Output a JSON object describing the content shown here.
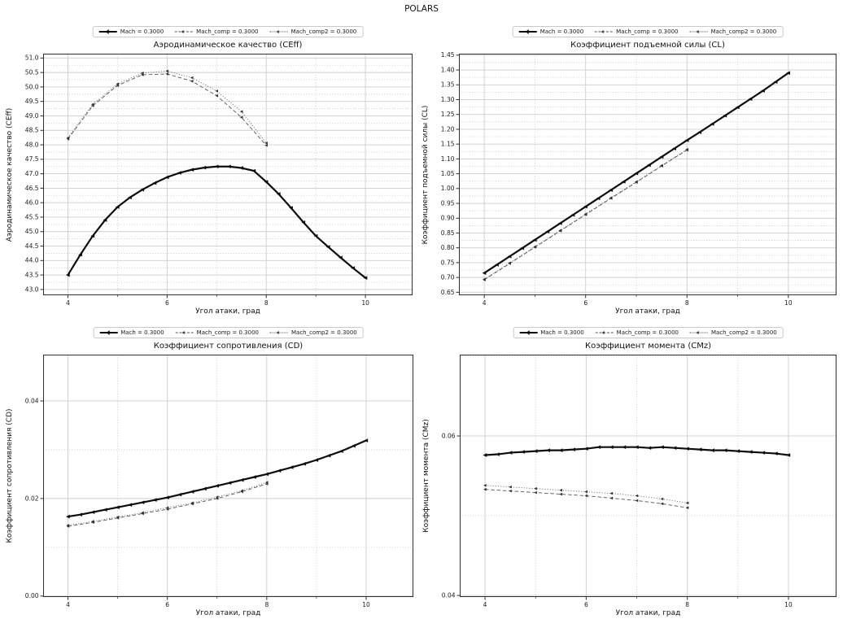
{
  "figure": {
    "suptitle": "POLARS",
    "background": "#ffffff"
  },
  "style": {
    "line_main": "#0d0d0d",
    "line_comp": "#555555",
    "marker_comp": "#333333",
    "grid_major": "#cdcdcd",
    "grid_minor": "#c4c4c4",
    "spine": "#2e2e2e",
    "tick_text": "#1a1a1a"
  },
  "legend": {
    "items": [
      {
        "label": "Mach = 0.3000",
        "style": "solid",
        "marker": "triangle-left"
      },
      {
        "label": "Mach_comp = 0.3000",
        "style": "dashed",
        "marker": "triangle-left"
      },
      {
        "label": "Mach_comp2 = 0.3000",
        "style": "dotted",
        "marker": "triangle-left"
      }
    ]
  },
  "chart_data": [
    {
      "type": "line",
      "title": "Аэродинамическое качество (CEff)",
      "xlabel": "Угол атаки, град",
      "ylabel": "Аэродинамическое качество (CEff)",
      "xlim": [
        3.5,
        10.95
      ],
      "ylim": [
        42.8,
        51.15
      ],
      "grid": true,
      "legend_position": "top-center",
      "xticks": {
        "values": [
          4,
          6,
          8,
          10
        ],
        "labels": [
          "4",
          "6",
          "8",
          "10"
        ],
        "minor": [
          5,
          7,
          9
        ]
      },
      "yticks": {
        "values": [
          43.0,
          43.5,
          44.0,
          44.5,
          45.0,
          45.5,
          46.0,
          46.5,
          47.0,
          47.5,
          48.0,
          48.5,
          49.0,
          49.5,
          50.0,
          50.5,
          51.0
        ],
        "labels": [
          "43.0",
          "43.5",
          "44.0",
          "44.5",
          "45.0",
          "45.5",
          "46.0",
          "46.5",
          "47.0",
          "47.5",
          "48.0",
          "48.5",
          "49.0",
          "49.5",
          "50.0",
          "50.5",
          "51.0"
        ]
      },
      "series": [
        {
          "name": "Mach = 0.3000",
          "style": "solid",
          "x": [
            4,
            4.25,
            4.5,
            4.75,
            5,
            5.25,
            5.5,
            5.75,
            6,
            6.25,
            6.5,
            6.75,
            7,
            7.25,
            7.5,
            7.75,
            8,
            8.25,
            8.5,
            8.75,
            9,
            9.25,
            9.5,
            9.75,
            10
          ],
          "y": [
            43.5,
            44.2,
            44.85,
            45.4,
            45.85,
            46.18,
            46.45,
            46.68,
            46.88,
            47.03,
            47.14,
            47.21,
            47.25,
            47.25,
            47.2,
            47.1,
            46.72,
            46.3,
            45.82,
            45.32,
            44.85,
            44.47,
            44.1,
            43.74,
            43.4
          ]
        },
        {
          "name": "Mach_comp = 0.3000",
          "style": "dashed",
          "x": [
            4,
            4.5,
            5,
            5.5,
            6,
            6.5,
            7,
            7.5,
            8
          ],
          "y": [
            48.2,
            49.35,
            50.05,
            50.42,
            50.45,
            50.2,
            49.7,
            48.95,
            47.98
          ]
        },
        {
          "name": "Mach_comp2 = 0.3000",
          "style": "dotted",
          "x": [
            4,
            4.5,
            5,
            5.5,
            6,
            6.5,
            7,
            7.5,
            8
          ],
          "y": [
            48.24,
            49.4,
            50.1,
            50.48,
            50.55,
            50.32,
            49.86,
            49.15,
            48.06
          ]
        }
      ]
    },
    {
      "type": "line",
      "title": "Коэффициент подъемной силы (CL)",
      "xlabel": "Угол атаки, град",
      "ylabel": "Коэффициент подъемной силы (CL)",
      "xlim": [
        3.5,
        10.95
      ],
      "ylim": [
        0.64,
        1.455
      ],
      "grid": true,
      "legend_position": "top-center",
      "xticks": {
        "values": [
          4,
          6,
          8,
          10
        ],
        "labels": [
          "4",
          "6",
          "8",
          "10"
        ],
        "minor": [
          5,
          7,
          9
        ]
      },
      "yticks": {
        "values": [
          0.65,
          0.7,
          0.75,
          0.8,
          0.85,
          0.9,
          0.95,
          1.0,
          1.05,
          1.1,
          1.15,
          1.2,
          1.25,
          1.3,
          1.35,
          1.4,
          1.45
        ],
        "labels": [
          "0.65",
          "0.70",
          "0.75",
          "0.80",
          "0.85",
          "0.90",
          "0.95",
          "1.00",
          "1.05",
          "1.10",
          "1.15",
          "1.20",
          "1.25",
          "1.30",
          "1.35",
          "1.40",
          "1.45"
        ]
      },
      "series": [
        {
          "name": "Mach = 0.3000",
          "style": "solid",
          "x": [
            4,
            4.25,
            4.5,
            4.75,
            5,
            5.25,
            5.5,
            5.75,
            6,
            6.25,
            6.5,
            6.75,
            7,
            7.25,
            7.5,
            7.75,
            8,
            8.25,
            8.5,
            8.75,
            9,
            9.25,
            9.5,
            9.75,
            10
          ],
          "y": [
            0.715,
            0.743,
            0.771,
            0.799,
            0.827,
            0.855,
            0.883,
            0.911,
            0.939,
            0.967,
            0.995,
            1.023,
            1.051,
            1.079,
            1.107,
            1.135,
            1.163,
            1.19,
            1.218,
            1.246,
            1.274,
            1.302,
            1.33,
            1.36,
            1.39
          ]
        },
        {
          "name": "Mach_comp = 0.3000",
          "style": "dashed",
          "x": [
            4,
            4.5,
            5,
            5.5,
            6,
            6.5,
            7,
            7.5,
            8
          ],
          "y": [
            0.692,
            0.747,
            0.802,
            0.857,
            0.912,
            0.967,
            1.021,
            1.076,
            1.13
          ]
        },
        {
          "name": "Mach_comp2 = 0.3000",
          "style": "dotted",
          "x": [
            4,
            4.5,
            5,
            5.5,
            6,
            6.5,
            7,
            7.5,
            8
          ],
          "y": [
            0.694,
            0.749,
            0.804,
            0.859,
            0.914,
            0.969,
            1.023,
            1.078,
            1.132
          ]
        }
      ]
    },
    {
      "type": "line",
      "title": "Коэффициент сопротивления (CD)",
      "xlabel": "Угол атаки, град",
      "ylabel": "Коэффициент сопротивления (CD)",
      "xlim": [
        3.5,
        10.95
      ],
      "ylim": [
        -0.0002,
        0.0495
      ],
      "grid": true,
      "legend_position": "top-center",
      "xticks": {
        "values": [
          4,
          6,
          8,
          10
        ],
        "labels": [
          "4",
          "6",
          "8",
          "10"
        ],
        "minor": [
          5,
          7,
          9
        ]
      },
      "yticks": {
        "values": [
          0.0,
          0.02,
          0.04
        ],
        "labels": [
          "0.00",
          "0.02",
          "0.04"
        ]
      },
      "series": [
        {
          "name": "Mach = 0.3000",
          "style": "solid",
          "x": [
            4,
            4.25,
            4.5,
            4.75,
            5,
            5.25,
            5.5,
            5.75,
            6,
            6.25,
            6.5,
            6.75,
            7,
            7.25,
            7.5,
            7.75,
            8,
            8.25,
            8.5,
            8.75,
            9,
            9.25,
            9.5,
            9.75,
            10
          ],
          "y": [
            0.0163,
            0.0167,
            0.0172,
            0.0177,
            0.0182,
            0.0187,
            0.0192,
            0.0197,
            0.0202,
            0.0208,
            0.0214,
            0.022,
            0.0226,
            0.0232,
            0.0238,
            0.0244,
            0.025,
            0.0257,
            0.0264,
            0.0271,
            0.0279,
            0.0288,
            0.0297,
            0.0308,
            0.0319
          ]
        },
        {
          "name": "Mach_comp = 0.3000",
          "style": "dashed",
          "x": [
            4,
            4.5,
            5,
            5.5,
            6,
            6.5,
            7,
            7.5,
            8
          ],
          "y": [
            0.0143,
            0.0151,
            0.016,
            0.0169,
            0.0178,
            0.0189,
            0.02,
            0.0214,
            0.023
          ]
        },
        {
          "name": "Mach_comp2 = 0.3000",
          "style": "dotted",
          "x": [
            4,
            4.5,
            5,
            5.5,
            6,
            6.5,
            7,
            7.5,
            8
          ],
          "y": [
            0.0145,
            0.0153,
            0.0162,
            0.0171,
            0.0181,
            0.0191,
            0.0203,
            0.0216,
            0.0233
          ]
        }
      ]
    },
    {
      "type": "line",
      "title": "Коэффициент момента (CMz)",
      "xlabel": "Угол атаки, град",
      "ylabel": "Коэффициент момента (CMz)",
      "xlim": [
        3.5,
        10.95
      ],
      "ylim": [
        0.0398,
        0.0702
      ],
      "grid": true,
      "legend_position": "top-center",
      "xticks": {
        "values": [
          4,
          6,
          8,
          10
        ],
        "labels": [
          "4",
          "6",
          "8",
          "10"
        ],
        "minor": [
          5,
          7,
          9
        ]
      },
      "yticks": {
        "values": [
          0.04,
          0.06
        ],
        "labels": [
          "0.04",
          "0.06"
        ]
      },
      "series": [
        {
          "name": "Mach = 0.3000",
          "style": "solid",
          "x": [
            4,
            4.25,
            4.5,
            4.75,
            5,
            5.25,
            5.5,
            5.75,
            6,
            6.25,
            6.5,
            6.75,
            7,
            7.25,
            7.5,
            7.75,
            8,
            8.25,
            8.5,
            8.75,
            9,
            9.25,
            9.5,
            9.75,
            10
          ],
          "y": [
            0.0576,
            0.0577,
            0.0579,
            0.058,
            0.0581,
            0.0582,
            0.0582,
            0.0583,
            0.0584,
            0.0586,
            0.0586,
            0.0586,
            0.0586,
            0.0585,
            0.0586,
            0.0585,
            0.0584,
            0.0583,
            0.0582,
            0.0582,
            0.0581,
            0.058,
            0.0579,
            0.0578,
            0.0576
          ]
        },
        {
          "name": "Mach_comp = 0.3000",
          "style": "dashed",
          "x": [
            4,
            4.5,
            5,
            5.5,
            6,
            6.5,
            7,
            7.5,
            8
          ],
          "y": [
            0.0533,
            0.0531,
            0.0529,
            0.0527,
            0.0525,
            0.0522,
            0.0519,
            0.0515,
            0.051
          ]
        },
        {
          "name": "Mach_comp2 = 0.3000",
          "style": "dotted",
          "x": [
            4,
            4.5,
            5,
            5.5,
            6,
            6.5,
            7,
            7.5,
            8
          ],
          "y": [
            0.0538,
            0.0536,
            0.0534,
            0.0532,
            0.053,
            0.0528,
            0.0525,
            0.0521,
            0.0516
          ]
        }
      ]
    }
  ]
}
